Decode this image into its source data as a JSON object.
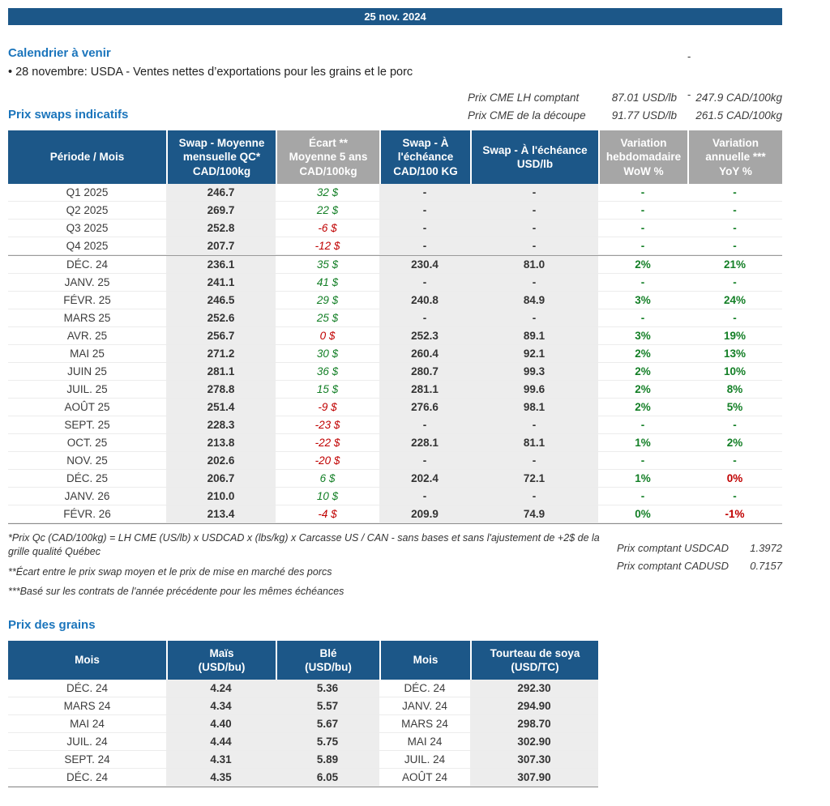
{
  "colors": {
    "navy": "#1c5788",
    "gray-header": "#a6a6a6",
    "shade": "#ededed",
    "green": "#137f26",
    "red": "#c00000",
    "heading-blue": "#1b75bc",
    "text": "#333333"
  },
  "header": {
    "date": "25 nov. 2024",
    "dash1": "-",
    "dash2": "-"
  },
  "calendar": {
    "heading": "Calendrier à venir",
    "item": "• 28 novembre: USDA - Ventes nettes d’exportations pour les grains et le porc"
  },
  "cme": {
    "rows": [
      {
        "label": "Prix CME LH comptant",
        "usd": "87.01 USD/lb",
        "cad": "247.9 CAD/100kg"
      },
      {
        "label": "Prix CME de la découpe",
        "usd": "91.77 USD/lb",
        "cad": "261.5 CAD/100kg"
      }
    ]
  },
  "swaps": {
    "heading": "Prix swaps indicatifs",
    "headers": [
      "Période / Mois",
      "Swap - Moyenne\nmensuelle QC*\nCAD/100kg",
      "Écart **\nMoyenne 5 ans\nCAD/100kg",
      "Swap - À\nl'échéance\nCAD/100 KG",
      "Swap - À l'échéance\nUSD/lb",
      "Variation\nhebdomadaire\nWoW %",
      "Variation\nannuelle ***\nYoY %"
    ],
    "rows": [
      {
        "period": "Q1 2025",
        "avg": "246.7",
        "ecart": "32 $",
        "ecart_color": "green",
        "mat_cad": "-",
        "mat_usd": "-",
        "wow": "-",
        "wow_color": "green",
        "yoy": "-",
        "yoy_color": "green",
        "group_start": false
      },
      {
        "period": "Q2 2025",
        "avg": "269.7",
        "ecart": "22 $",
        "ecart_color": "green",
        "mat_cad": "-",
        "mat_usd": "-",
        "wow": "-",
        "wow_color": "green",
        "yoy": "-",
        "yoy_color": "green",
        "group_start": false
      },
      {
        "period": "Q3 2025",
        "avg": "252.8",
        "ecart": "-6 $",
        "ecart_color": "red",
        "mat_cad": "-",
        "mat_usd": "-",
        "wow": "-",
        "wow_color": "green",
        "yoy": "-",
        "yoy_color": "green",
        "group_start": false
      },
      {
        "period": "Q4 2025",
        "avg": "207.7",
        "ecart": "-12 $",
        "ecart_color": "red",
        "mat_cad": "-",
        "mat_usd": "-",
        "wow": "-",
        "wow_color": "green",
        "yoy": "-",
        "yoy_color": "green",
        "group_start": false
      },
      {
        "period": "DÉC. 24",
        "avg": "236.1",
        "ecart": "35 $",
        "ecart_color": "green",
        "mat_cad": "230.4",
        "mat_usd": "81.0",
        "wow": "2%",
        "wow_color": "green",
        "yoy": "21%",
        "yoy_color": "green",
        "group_start": true
      },
      {
        "period": "JANV. 25",
        "avg": "241.1",
        "ecart": "41 $",
        "ecart_color": "green",
        "mat_cad": "-",
        "mat_usd": "-",
        "wow": "-",
        "wow_color": "green",
        "yoy": "-",
        "yoy_color": "green",
        "group_start": false
      },
      {
        "period": "FÉVR. 25",
        "avg": "246.5",
        "ecart": "29 $",
        "ecart_color": "green",
        "mat_cad": "240.8",
        "mat_usd": "84.9",
        "wow": "3%",
        "wow_color": "green",
        "yoy": "24%",
        "yoy_color": "green",
        "group_start": false
      },
      {
        "period": "MARS 25",
        "avg": "252.6",
        "ecart": "25 $",
        "ecart_color": "green",
        "mat_cad": "-",
        "mat_usd": "-",
        "wow": "-",
        "wow_color": "green",
        "yoy": "-",
        "yoy_color": "green",
        "group_start": false
      },
      {
        "period": "AVR. 25",
        "avg": "256.7",
        "ecart": "0 $",
        "ecart_color": "red",
        "mat_cad": "252.3",
        "mat_usd": "89.1",
        "wow": "3%",
        "wow_color": "green",
        "yoy": "19%",
        "yoy_color": "green",
        "group_start": false
      },
      {
        "period": "MAI 25",
        "avg": "271.2",
        "ecart": "30 $",
        "ecart_color": "green",
        "mat_cad": "260.4",
        "mat_usd": "92.1",
        "wow": "2%",
        "wow_color": "green",
        "yoy": "13%",
        "yoy_color": "green",
        "group_start": false
      },
      {
        "period": "JUIN 25",
        "avg": "281.1",
        "ecart": "36 $",
        "ecart_color": "green",
        "mat_cad": "280.7",
        "mat_usd": "99.3",
        "wow": "2%",
        "wow_color": "green",
        "yoy": "10%",
        "yoy_color": "green",
        "group_start": false
      },
      {
        "period": "JUIL. 25",
        "avg": "278.8",
        "ecart": "15 $",
        "ecart_color": "green",
        "mat_cad": "281.1",
        "mat_usd": "99.6",
        "wow": "2%",
        "wow_color": "green",
        "yoy": "8%",
        "yoy_color": "green",
        "group_start": false
      },
      {
        "period": "AOÛT 25",
        "avg": "251.4",
        "ecart": "-9 $",
        "ecart_color": "red",
        "mat_cad": "276.6",
        "mat_usd": "98.1",
        "wow": "2%",
        "wow_color": "green",
        "yoy": "5%",
        "yoy_color": "green",
        "group_start": false
      },
      {
        "period": "SEPT. 25",
        "avg": "228.3",
        "ecart": "-23 $",
        "ecart_color": "red",
        "mat_cad": "-",
        "mat_usd": "-",
        "wow": "-",
        "wow_color": "green",
        "yoy": "-",
        "yoy_color": "green",
        "group_start": false
      },
      {
        "period": "OCT. 25",
        "avg": "213.8",
        "ecart": "-22 $",
        "ecart_color": "red",
        "mat_cad": "228.1",
        "mat_usd": "81.1",
        "wow": "1%",
        "wow_color": "green",
        "yoy": "2%",
        "yoy_color": "green",
        "group_start": false
      },
      {
        "period": "NOV. 25",
        "avg": "202.6",
        "ecart": "-20 $",
        "ecart_color": "red",
        "mat_cad": "-",
        "mat_usd": "-",
        "wow": "-",
        "wow_color": "green",
        "yoy": "-",
        "yoy_color": "green",
        "group_start": false
      },
      {
        "period": "DÉC. 25",
        "avg": "206.7",
        "ecart": "6 $",
        "ecart_color": "green",
        "mat_cad": "202.4",
        "mat_usd": "72.1",
        "wow": "1%",
        "wow_color": "green",
        "yoy": "0%",
        "yoy_color": "red",
        "group_start": false
      },
      {
        "period": "JANV. 26",
        "avg": "210.0",
        "ecart": "10 $",
        "ecart_color": "green",
        "mat_cad": "-",
        "mat_usd": "-",
        "wow": "-",
        "wow_color": "green",
        "yoy": "-",
        "yoy_color": "green",
        "group_start": false
      },
      {
        "period": "FÉVR. 26",
        "avg": "213.4",
        "ecart": "-4 $",
        "ecart_color": "red",
        "mat_cad": "209.9",
        "mat_usd": "74.9",
        "wow": "0%",
        "wow_color": "green",
        "yoy": "-1%",
        "yoy_color": "red",
        "group_start": false
      }
    ]
  },
  "footnotes": {
    "items": [
      "*Prix Qc (CAD/100kg) = LH CME (US/lb) x USDCAD x (lbs/kg) x Carcasse US / CAN - sans bases et sans l'ajustement de +2$ de la grille qualité Québec",
      "**Écart entre le prix swap moyen et le prix de mise en marché des porcs",
      "***Basé sur les contrats de l'année précédente pour les mêmes échéances"
    ]
  },
  "spot": {
    "rows": [
      {
        "label": "Prix comptant USDCAD",
        "value": "1.3972"
      },
      {
        "label": "Prix comptant CADUSD",
        "value": "0.7157"
      }
    ]
  },
  "grains": {
    "heading": "Prix des grains",
    "headers": [
      "Mois",
      "Maïs\n(USD/bu)",
      "Blé\n(USD/bu)",
      "Mois",
      "Tourteau de soya\n(USD/TC)"
    ],
    "rows": [
      {
        "month1": "DÉC. 24",
        "corn": "4.24",
        "wheat": "5.36",
        "month2": "DÉC. 24",
        "soymeal": "292.30"
      },
      {
        "month1": "MARS 24",
        "corn": "4.34",
        "wheat": "5.57",
        "month2": "JANV. 24",
        "soymeal": "294.90"
      },
      {
        "month1": "MAI 24",
        "corn": "4.40",
        "wheat": "5.67",
        "month2": "MARS 24",
        "soymeal": "298.70"
      },
      {
        "month1": "JUIL. 24",
        "corn": "4.44",
        "wheat": "5.75",
        "month2": "MAI 24",
        "soymeal": "302.90"
      },
      {
        "month1": "SEPT. 24",
        "corn": "4.31",
        "wheat": "5.89",
        "month2": "JUIL. 24",
        "soymeal": "307.30"
      },
      {
        "month1": "DÉC. 24",
        "corn": "4.35",
        "wheat": "6.05",
        "month2": "AOÛT 24",
        "soymeal": "307.90"
      }
    ]
  }
}
